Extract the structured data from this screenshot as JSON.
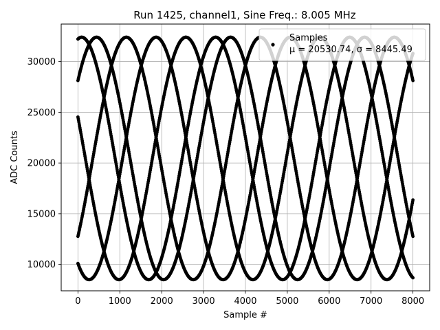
{
  "chart_data": {
    "type": "scatter",
    "title": "Run 1425, channel1, Sine Freq.: 8.005 MHz",
    "xlabel": "Sample #",
    "ylabel": "ADC Counts",
    "xlim": [
      -400,
      8400
    ],
    "ylim": [
      7400,
      33700
    ],
    "xticks": [
      0,
      1000,
      2000,
      3000,
      4000,
      5000,
      6000,
      7000,
      8000
    ],
    "yticks": [
      10000,
      15000,
      20000,
      25000,
      30000
    ],
    "grid": true,
    "legend_position": "top-right",
    "marker_color": "#000000",
    "series": [
      {
        "name": "Samples",
        "label_line": "μ = 20530.74, σ = 8445.49",
        "model": {
          "mean": 20450,
          "amplitude": 11950,
          "period_samples": 3200,
          "phase_offsets_deg": [
            80,
            160,
            240,
            320,
            40
          ],
          "x_range": [
            0,
            8000
          ]
        }
      }
    ]
  }
}
